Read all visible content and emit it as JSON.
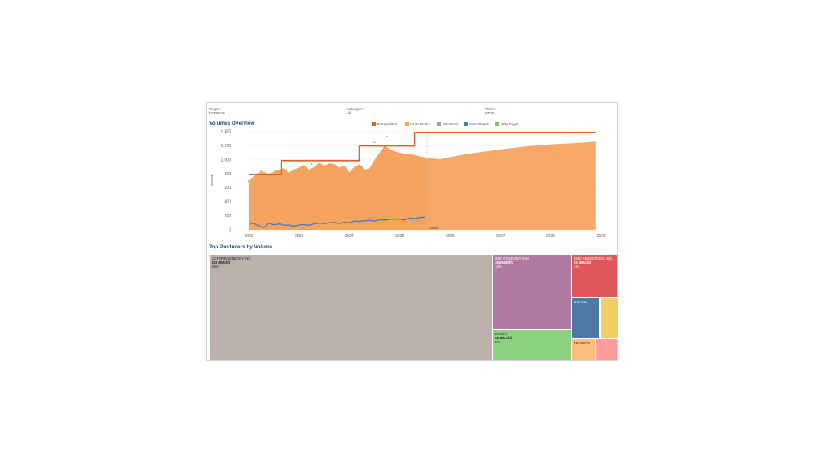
{
  "filters": [
    {
      "label": "Region:",
      "value": "PERMIAN"
    },
    {
      "label": "Subregion:",
      "value": "All"
    },
    {
      "label": "Ticker:",
      "value": "MPLX"
    }
  ],
  "volumes_title": "Volumes Overview",
  "producers_title": "Top Producers by Volume",
  "legend": [
    {
      "label": "Extrapolated..",
      "color": "#e0612b"
    },
    {
      "label": "Gross Produ..",
      "color": "#f5a35e"
    },
    {
      "label": "Plant Inlet",
      "color": "#9e9e9e"
    },
    {
      "label": "Flow Sample",
      "color": "#4a7fb5"
    },
    {
      "label": "Qtrly Target",
      "color": "#7cc26b"
    }
  ],
  "chart_data": {
    "type": "area",
    "ylabel": "MMcf/d",
    "ylim": [
      0,
      1400
    ],
    "yticks": [
      "0",
      "200",
      "400",
      "600",
      "800",
      "1,000",
      "1,200",
      "1,400"
    ],
    "xticks": [
      "2022",
      "2023",
      "2024",
      "2025",
      "2026",
      "2027",
      "2028",
      "2029"
    ],
    "xlim": [
      2022,
      2029
    ],
    "today_label": "Today",
    "today_x": 2025.55,
    "gross_production": {
      "x": [
        2022.0,
        2022.1,
        2022.25,
        2022.4,
        2022.55,
        2022.7,
        2022.8,
        2022.9,
        2023.0,
        2023.1,
        2023.2,
        2023.3,
        2023.4,
        2023.5,
        2023.6,
        2023.7,
        2023.8,
        2023.9,
        2024.0,
        2024.1,
        2024.2,
        2024.3,
        2024.4,
        2024.5,
        2024.6,
        2024.7,
        2024.8,
        2024.9,
        2025.0,
        2025.1,
        2025.2,
        2025.3,
        2025.4,
        2025.55,
        2025.8,
        2026.0,
        2026.3,
        2026.6,
        2027.0,
        2027.5,
        2028.0,
        2028.5,
        2028.9
      ],
      "y": [
        700,
        760,
        840,
        800,
        850,
        880,
        820,
        860,
        890,
        930,
        860,
        900,
        960,
        920,
        950,
        940,
        890,
        930,
        820,
        900,
        940,
        860,
        880,
        1000,
        1100,
        1200,
        1160,
        1120,
        1100,
        1090,
        1080,
        1070,
        1050,
        1030,
        1010,
        1040,
        1080,
        1110,
        1150,
        1190,
        1220,
        1240,
        1260
      ]
    },
    "extrapolated": {
      "x": [
        2022.0,
        2022.65,
        2022.65,
        2024.2,
        2024.2,
        2025.3,
        2025.3,
        2028.9
      ],
      "y": [
        790,
        790,
        990,
        990,
        1200,
        1200,
        1390,
        1390
      ]
    },
    "flow_sample": {
      "x": [
        2022.0,
        2022.1,
        2022.2,
        2022.3,
        2022.4,
        2022.5,
        2022.6,
        2022.7,
        2022.8,
        2022.9,
        2023.0,
        2023.1,
        2023.2,
        2023.3,
        2023.4,
        2023.5,
        2023.6,
        2023.7,
        2023.8,
        2023.9,
        2024.0,
        2024.1,
        2024.2,
        2024.3,
        2024.4,
        2024.5,
        2024.6,
        2024.7,
        2024.8,
        2024.9,
        2025.0,
        2025.1,
        2025.2,
        2025.3,
        2025.4,
        2025.5
      ],
      "y": [
        95,
        90,
        60,
        30,
        95,
        70,
        85,
        65,
        70,
        50,
        70,
        75,
        65,
        85,
        95,
        90,
        100,
        105,
        90,
        110,
        100,
        125,
        120,
        130,
        135,
        125,
        145,
        140,
        150,
        155,
        150,
        140,
        170,
        160,
        175,
        180
      ]
    },
    "qtrly_target": {
      "x": [
        2022.0,
        2022.25,
        2022.5,
        2022.75,
        2023.0,
        2023.25,
        2023.5,
        2023.75,
        2024.0,
        2024.25,
        2024.5,
        2024.75
      ],
      "y": [
        700,
        840,
        850,
        860,
        870,
        940,
        910,
        910,
        790,
        900,
        1250,
        1330
      ]
    }
  },
  "treemap": [
    {
      "name": "COTERRA ENERGY INC",
      "value": "823 MMcf/d",
      "pct": "69%",
      "color": "#bab0ac",
      "text_color": "#222"
    },
    {
      "name": "GBF CORPORATION",
      "value": "163 MMcf/d",
      "pct": "14%",
      "color": "#b07aa1",
      "text_color": "#fff"
    },
    {
      "name": "EXXON",
      "value": "68 MMcf/d",
      "pct": "6%",
      "color": "#8cd17d",
      "text_color": "#222"
    },
    {
      "name": "EOG RESOURCES, INC.",
      "value": "52 MMcf/d",
      "pct": "4%",
      "color": "#e15759",
      "text_color": "#fff"
    },
    {
      "name": "BTA OIL",
      "value": "",
      "pct": "",
      "color": "#4e79a7",
      "text_color": "#fff"
    },
    {
      "name": "",
      "value": "",
      "pct": "",
      "color": "#f1ce63",
      "text_color": "#222"
    },
    {
      "name": "PERMIAN",
      "value": "",
      "pct": "",
      "color": "#ffbe7d",
      "text_color": "#222"
    },
    {
      "name": "",
      "value": "",
      "pct": "",
      "color": "#ff9d9a",
      "text_color": "#222"
    }
  ]
}
